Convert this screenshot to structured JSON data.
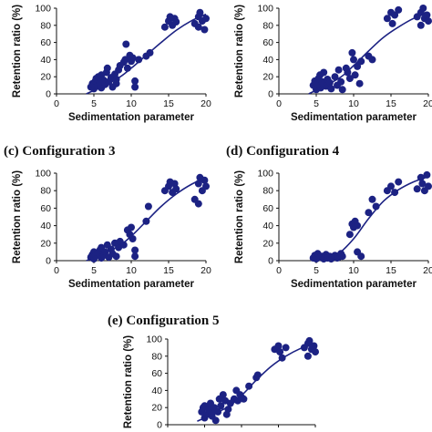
{
  "chart_data": [
    {
      "type": "scatter",
      "panel_label": "",
      "title": "",
      "xlabel": "Sedimentation parameter",
      "ylabel": "Retention ratio (%)",
      "xlim": [
        0,
        20
      ],
      "ylim": [
        0,
        100
      ],
      "xticks": [
        0,
        5,
        10,
        15,
        20
      ],
      "yticks": [
        0,
        20,
        40,
        60,
        80,
        100
      ],
      "series": [
        {
          "type": "scatter",
          "values": [
            [
              4.6,
              8
            ],
            [
              4.8,
              12
            ],
            [
              5,
              6
            ],
            [
              5,
              10
            ],
            [
              5.2,
              15
            ],
            [
              5.3,
              18
            ],
            [
              5.5,
              9
            ],
            [
              5.6,
              20
            ],
            [
              5.8,
              13
            ],
            [
              6,
              22
            ],
            [
              6,
              7
            ],
            [
              6.3,
              16
            ],
            [
              6.5,
              11
            ],
            [
              6.7,
              25
            ],
            [
              6.8,
              30
            ],
            [
              7,
              14
            ],
            [
              7.3,
              19
            ],
            [
              7.5,
              8
            ],
            [
              7.8,
              23
            ],
            [
              8,
              12
            ],
            [
              8,
              17
            ],
            [
              8.3,
              28
            ],
            [
              8.5,
              33
            ],
            [
              9,
              37
            ],
            [
              9.2,
              40
            ],
            [
              9.3,
              58
            ],
            [
              9.5,
              30
            ],
            [
              9.8,
              45
            ],
            [
              10,
              38
            ],
            [
              10.2,
              42
            ],
            [
              10.5,
              15
            ],
            [
              10.5,
              8
            ],
            [
              11,
              40
            ],
            [
              12,
              44
            ],
            [
              12.5,
              48
            ],
            [
              14.5,
              78
            ],
            [
              15,
              85
            ],
            [
              15.2,
              90
            ],
            [
              15.5,
              80
            ],
            [
              15.8,
              88
            ],
            [
              16,
              84
            ],
            [
              18.5,
              82
            ],
            [
              19,
              90
            ],
            [
              19,
              78
            ],
            [
              19.2,
              95
            ],
            [
              19.5,
              85
            ],
            [
              19.8,
              75
            ],
            [
              20,
              88
            ]
          ]
        },
        {
          "type": "line",
          "values": [
            [
              4,
              0
            ],
            [
              8,
              17
            ],
            [
              10,
              30
            ],
            [
              12,
              45
            ],
            [
              14,
              60
            ],
            [
              16,
              74
            ],
            [
              18,
              85
            ],
            [
              20,
              93
            ]
          ]
        }
      ]
    },
    {
      "type": "scatter",
      "panel_label": "",
      "title": "",
      "xlabel": "Sedimentation parameter",
      "ylabel": "Retention ratio (%)",
      "xlim": [
        0,
        20
      ],
      "ylim": [
        0,
        100
      ],
      "xticks": [
        0,
        5,
        10,
        15,
        20
      ],
      "yticks": [
        0,
        20,
        40,
        60,
        80,
        100
      ],
      "series": [
        {
          "type": "scatter",
          "values": [
            [
              4.6,
              10
            ],
            [
              4.8,
              15
            ],
            [
              5,
              5
            ],
            [
              5,
              8
            ],
            [
              5.2,
              12
            ],
            [
              5.3,
              18
            ],
            [
              5.5,
              22
            ],
            [
              5.6,
              7
            ],
            [
              5.8,
              14
            ],
            [
              6,
              11
            ],
            [
              6,
              25
            ],
            [
              6.3,
              9
            ],
            [
              6.5,
              17
            ],
            [
              6.8,
              13
            ],
            [
              7,
              6
            ],
            [
              7.5,
              20
            ],
            [
              7.8,
              10
            ],
            [
              8,
              28
            ],
            [
              8.3,
              14
            ],
            [
              8.5,
              5
            ],
            [
              9,
              30
            ],
            [
              9.2,
              25
            ],
            [
              9.5,
              18
            ],
            [
              9.8,
              48
            ],
            [
              10,
              40
            ],
            [
              10.2,
              22
            ],
            [
              10.5,
              32
            ],
            [
              10.8,
              12
            ],
            [
              11,
              38
            ],
            [
              12,
              44
            ],
            [
              12.5,
              40
            ],
            [
              14.5,
              88
            ],
            [
              15,
              95
            ],
            [
              15.2,
              82
            ],
            [
              15.5,
              92
            ],
            [
              16,
              98
            ],
            [
              18.5,
              90
            ],
            [
              19,
              80
            ],
            [
              19,
              95
            ],
            [
              19.3,
              100
            ],
            [
              19.5,
              88
            ],
            [
              19.8,
              92
            ],
            [
              20,
              85
            ]
          ]
        },
        {
          "type": "line",
          "values": [
            [
              4,
              0
            ],
            [
              8,
              18
            ],
            [
              10,
              33
            ],
            [
              12,
              50
            ],
            [
              14,
              66
            ],
            [
              16,
              78
            ],
            [
              18,
              88
            ],
            [
              20,
              95
            ]
          ]
        }
      ]
    },
    {
      "type": "scatter",
      "panel_label": "(c)",
      "title": "Configuration 3",
      "xlabel": "Sedimentation parameter",
      "ylabel": "Retention ratio (%)",
      "xlim": [
        0,
        20
      ],
      "ylim": [
        0,
        100
      ],
      "xticks": [
        0,
        5,
        10,
        15,
        20
      ],
      "yticks": [
        0,
        20,
        40,
        60,
        80,
        100
      ],
      "series": [
        {
          "type": "scatter",
          "values": [
            [
              4.6,
              4
            ],
            [
              4.8,
              7
            ],
            [
              5,
              2
            ],
            [
              5,
              10
            ],
            [
              5.2,
              5
            ],
            [
              5.5,
              8
            ],
            [
              5.8,
              12
            ],
            [
              6,
              3
            ],
            [
              6,
              15
            ],
            [
              6.3,
              6
            ],
            [
              6.5,
              10
            ],
            [
              6.8,
              18
            ],
            [
              7,
              4
            ],
            [
              7.3,
              13
            ],
            [
              7.5,
              8
            ],
            [
              7.8,
              20
            ],
            [
              8,
              5
            ],
            [
              8.3,
              15
            ],
            [
              8.5,
              22
            ],
            [
              9,
              18
            ],
            [
              9.5,
              35
            ],
            [
              9.8,
              30
            ],
            [
              10,
              38
            ],
            [
              10.2,
              25
            ],
            [
              10.5,
              5
            ],
            [
              10.5,
              12
            ],
            [
              12,
              45
            ],
            [
              12.3,
              62
            ],
            [
              14.5,
              80
            ],
            [
              15,
              85
            ],
            [
              15.2,
              90
            ],
            [
              15.5,
              78
            ],
            [
              15.8,
              88
            ],
            [
              16,
              82
            ],
            [
              18.5,
              70
            ],
            [
              19,
              88
            ],
            [
              19,
              65
            ],
            [
              19.2,
              95
            ],
            [
              19.5,
              80
            ],
            [
              19.8,
              92
            ],
            [
              20,
              85
            ]
          ]
        },
        {
          "type": "line",
          "values": [
            [
              4,
              0
            ],
            [
              8,
              15
            ],
            [
              10,
              28
            ],
            [
              12,
              45
            ],
            [
              14,
              62
            ],
            [
              16,
              76
            ],
            [
              18,
              87
            ],
            [
              20,
              95
            ]
          ]
        }
      ]
    },
    {
      "type": "scatter",
      "panel_label": "(d)",
      "title": "Configuration 4",
      "xlabel": "Sedimentation parameter",
      "ylabel": "Retention ratio (%)",
      "xlim": [
        0,
        20
      ],
      "ylim": [
        0,
        100
      ],
      "xticks": [
        0,
        5,
        10,
        15,
        20
      ],
      "yticks": [
        0,
        20,
        40,
        60,
        80,
        100
      ],
      "series": [
        {
          "type": "scatter",
          "values": [
            [
              4.6,
              3
            ],
            [
              4.8,
              6
            ],
            [
              5,
              2
            ],
            [
              5.2,
              8
            ],
            [
              5.5,
              4
            ],
            [
              5.8,
              5
            ],
            [
              6,
              2
            ],
            [
              6.3,
              7
            ],
            [
              6.5,
              3
            ],
            [
              6.8,
              5
            ],
            [
              7,
              2
            ],
            [
              7.5,
              6
            ],
            [
              7.8,
              3
            ],
            [
              8,
              4
            ],
            [
              8.3,
              8
            ],
            [
              8.5,
              5
            ],
            [
              9.5,
              30
            ],
            [
              9.8,
              42
            ],
            [
              10,
              38
            ],
            [
              10.2,
              45
            ],
            [
              10.5,
              40
            ],
            [
              10.5,
              10
            ],
            [
              11,
              5
            ],
            [
              12,
              55
            ],
            [
              12.5,
              70
            ],
            [
              13,
              62
            ],
            [
              14.5,
              80
            ],
            [
              15,
              85
            ],
            [
              15.5,
              78
            ],
            [
              16,
              90
            ],
            [
              18.5,
              82
            ],
            [
              19,
              95
            ],
            [
              19.2,
              88
            ],
            [
              19.5,
              80
            ],
            [
              19.8,
              98
            ],
            [
              20,
              85
            ]
          ]
        },
        {
          "type": "line",
          "values": [
            [
              6,
              0
            ],
            [
              8,
              8
            ],
            [
              10,
              25
            ],
            [
              12,
              48
            ],
            [
              14,
              68
            ],
            [
              16,
              81
            ],
            [
              18,
              90
            ],
            [
              20,
              96
            ]
          ]
        }
      ]
    },
    {
      "type": "scatter",
      "panel_label": "(e)",
      "title": "Configuration 5",
      "xlabel": "",
      "ylabel": "Retention ratio (%)",
      "xlim": [
        0,
        20
      ],
      "ylim": [
        0,
        100
      ],
      "xticks": [],
      "yticks": [
        0,
        20,
        40,
        60,
        80,
        100
      ],
      "series": [
        {
          "type": "scatter",
          "values": [
            [
              4.6,
              15
            ],
            [
              4.8,
              20
            ],
            [
              5,
              8
            ],
            [
              5,
              22
            ],
            [
              5.3,
              12
            ],
            [
              5.5,
              18
            ],
            [
              5.8,
              25
            ],
            [
              6,
              10
            ],
            [
              6,
              14
            ],
            [
              6.3,
              20
            ],
            [
              6.5,
              5
            ],
            [
              6.8,
              15
            ],
            [
              7,
              30
            ],
            [
              7.2,
              22
            ],
            [
              7.5,
              35
            ],
            [
              7.8,
              28
            ],
            [
              8,
              12
            ],
            [
              8.2,
              18
            ],
            [
              8.5,
              25
            ],
            [
              9,
              30
            ],
            [
              9.3,
              40
            ],
            [
              9.5,
              28
            ],
            [
              9.8,
              35
            ],
            [
              10,
              32
            ],
            [
              10.3,
              30
            ],
            [
              11,
              45
            ],
            [
              12,
              55
            ],
            [
              12.2,
              58
            ],
            [
              14.5,
              88
            ],
            [
              15,
              92
            ],
            [
              15.2,
              85
            ],
            [
              15.5,
              78
            ],
            [
              16,
              90
            ],
            [
              18.5,
              90
            ],
            [
              19,
              95
            ],
            [
              19,
              80
            ],
            [
              19.2,
              98
            ],
            [
              19.5,
              88
            ],
            [
              19.8,
              92
            ],
            [
              20,
              85
            ]
          ]
        },
        {
          "type": "line",
          "values": [
            [
              4,
              4
            ],
            [
              8,
              20
            ],
            [
              10,
              34
            ],
            [
              12,
              52
            ],
            [
              14,
              68
            ],
            [
              16,
              80
            ],
            [
              18,
              89
            ],
            [
              20,
              95
            ]
          ]
        }
      ]
    }
  ],
  "colors": {
    "marker": "#1c2283",
    "curve": "#1c2283",
    "axis": "#111111"
  }
}
